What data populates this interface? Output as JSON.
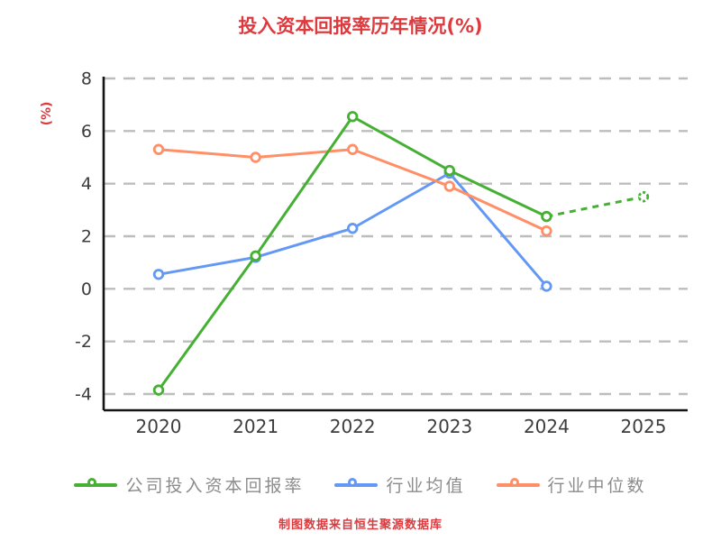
{
  "title": "投入资本回报率历年情况(%)",
  "footer": "制图数据来自恒生聚源数据库",
  "colors": {
    "accent_red": "#de3a3e",
    "axis": "#141414",
    "grid": "#bdbdbd",
    "tick_label": "#3d3d3d",
    "legend_label": "#8c8c8c"
  },
  "chart_data": {
    "type": "line",
    "title": "投入资本回报率历年情况(%)",
    "ylabel": "(%)",
    "ylim": [
      -4,
      8
    ],
    "yticks": [
      8,
      6,
      4,
      2,
      0,
      -2,
      -4
    ],
    "x_labels": [
      "2020",
      "2021",
      "2022",
      "2023",
      "2024",
      "2025"
    ],
    "grid": "horizontal-dashed",
    "legend_position": "bottom",
    "series": [
      {
        "name": "公司投入资本回报率",
        "color": "#46b035",
        "values": [
          -3.85,
          1.25,
          6.55,
          4.5,
          2.75,
          3.5
        ],
        "forecast_from_index": 4
      },
      {
        "name": "行业均值",
        "color": "#6398f5",
        "values": [
          0.55,
          1.2,
          2.3,
          4.4,
          0.1,
          null
        ]
      },
      {
        "name": "行业中位数",
        "color": "#ff8f66",
        "values": [
          5.3,
          5.0,
          5.3,
          3.9,
          2.2,
          null
        ]
      }
    ]
  }
}
